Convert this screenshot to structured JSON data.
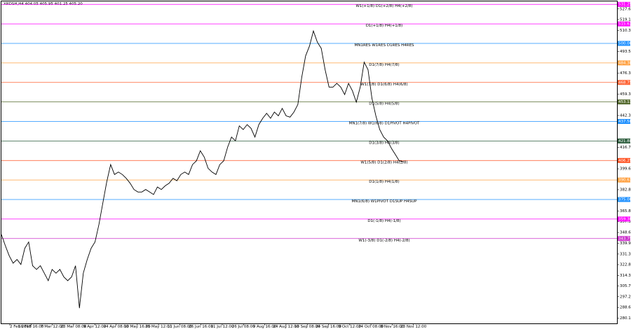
{
  "chart_data": {
    "type": "line",
    "symbol_info": "XRDSH,H4 404.05 405.95 401.25 405.20",
    "line_color": "#000000",
    "values": [
      347,
      338,
      330,
      324,
      327,
      323,
      336,
      341,
      322,
      319,
      322,
      316,
      310,
      319,
      316,
      319,
      313,
      310,
      313,
      322,
      288,
      316,
      327,
      336,
      341,
      355,
      372,
      389,
      403,
      395,
      397,
      395,
      392,
      388,
      383,
      381,
      381,
      383,
      381,
      379,
      385,
      383,
      386,
      388,
      392,
      390,
      395,
      397,
      395,
      403,
      406,
      414,
      409,
      400,
      397,
      395,
      403,
      406,
      417,
      425,
      422,
      434,
      431,
      435,
      432,
      425,
      435,
      440,
      444,
      440,
      445,
      442,
      448,
      442,
      441,
      445,
      451,
      473,
      490,
      498,
      510,
      501,
      496,
      479,
      465,
      465,
      468,
      465,
      459,
      468,
      462,
      453,
      465,
      485,
      479,
      456,
      442,
      431,
      425,
      422,
      416,
      411,
      406,
      405.2
    ],
    "ylim": [
      275.8,
      534.75
    ],
    "yticks": [
      {
        "value": 527.6,
        "label": "527.60"
      },
      {
        "value": 519.1,
        "label": "519.10"
      },
      {
        "value": 510.35,
        "label": "510.35"
      },
      {
        "value": 493.55,
        "label": "493.55"
      },
      {
        "value": 476.3,
        "label": "476.30"
      },
      {
        "value": 459.3,
        "label": "459.30"
      },
      {
        "value": 442.3,
        "label": "442.30"
      },
      {
        "value": 416.7,
        "label": "416.70"
      },
      {
        "value": 399.6,
        "label": "399.60"
      },
      {
        "value": 382.85,
        "label": "382.85"
      },
      {
        "value": 365.85,
        "label": "365.85"
      },
      {
        "value": 357.35,
        "label": "357.35"
      },
      {
        "value": 348.6,
        "label": "348.60"
      },
      {
        "value": 339.9,
        "label": "339.90"
      },
      {
        "value": 331.35,
        "label": "331.35"
      },
      {
        "value": 322.85,
        "label": "322.85"
      },
      {
        "value": 314.3,
        "label": "314.30"
      },
      {
        "value": 305.7,
        "label": "305.70"
      },
      {
        "value": 297.2,
        "label": "297.20"
      },
      {
        "value": 288.6,
        "label": "288.60"
      },
      {
        "value": 280.1,
        "label": "280.10"
      }
    ],
    "xtick_labels": [
      "2 Feb 2018",
      "16 Feb 16:00",
      "7 Mar 12:00",
      "23 Mar 08:00",
      "9 Apr 12:00",
      "24 Apr 08:00",
      "10 May 16:00",
      "25 May 12:00",
      "11 Jun 08:00",
      "26 Jun 16:00",
      "11 Jul 12:00",
      "26 Jul 08:00",
      "9 Aug 16:00",
      "24 Aug 12:00",
      "10 Sep 08:00",
      "24 Sep 16:00",
      "9 Oct 12:00",
      "24 Oct 08:00",
      "8 Nov 16:00",
      "23 Nov 12:00"
    ],
    "levels": [
      {
        "value": 531.25,
        "value_label": "531.25",
        "label": "W1(+1/8) D1(+2/8) H4(+2/8)",
        "color": "#ff00ff"
      },
      {
        "value": 515.63,
        "value_label": "515.63",
        "label": "D1(+1/8) H4(+1/8)",
        "color": "#ff00ff"
      },
      {
        "value": 500,
        "value_label": "500.00",
        "label": "MN1RES W1RES D1RES H4RES",
        "color": "#1e90ff"
      },
      {
        "value": 484.38,
        "value_label": "484.38",
        "label": "D1(7/8) H4(7/8)",
        "color": "#ffa040"
      },
      {
        "value": 468.75,
        "value_label": "468.75",
        "label": "W1(7/8) D1(6/8) H4(6/8)",
        "color": "#ff6030"
      },
      {
        "value": 453.13,
        "value_label": "453.13",
        "label": "D1(5/8) H4(5/8)",
        "color": "#556b2f"
      },
      {
        "value": 437.5,
        "value_label": "437.50",
        "label": "MN1(7/8) W1(6/8) D1PIVOT H4PIVOT",
        "color": "#1e90ff"
      },
      {
        "value": 421.88,
        "value_label": "421.88",
        "label": "D1(3/8) H4(3/8)",
        "color": "#2e5e3e"
      },
      {
        "value": 406.25,
        "value_label": "406.25",
        "label": "W1(5/8) D1(2/8) H4(2/8)",
        "color": "#ff5020"
      },
      {
        "value": 390.63,
        "value_label": "390.63",
        "label": "D1(1/8) H4(1/8)",
        "color": "#ffa040"
      },
      {
        "value": 375,
        "value_label": "375.00",
        "label": "MN1(6/8) W1PIVOT D1SUP H4SUP",
        "color": "#1e90ff"
      },
      {
        "value": 359.38,
        "value_label": "359.38",
        "label": "D1(-1/8) H4(-1/8)",
        "color": "#ff00ff"
      },
      {
        "value": 343.75,
        "value_label": "343.75",
        "label": "W1(-3/8) D1(-2/8) H4(-2/8)",
        "color": "#cc33cc"
      }
    ]
  }
}
